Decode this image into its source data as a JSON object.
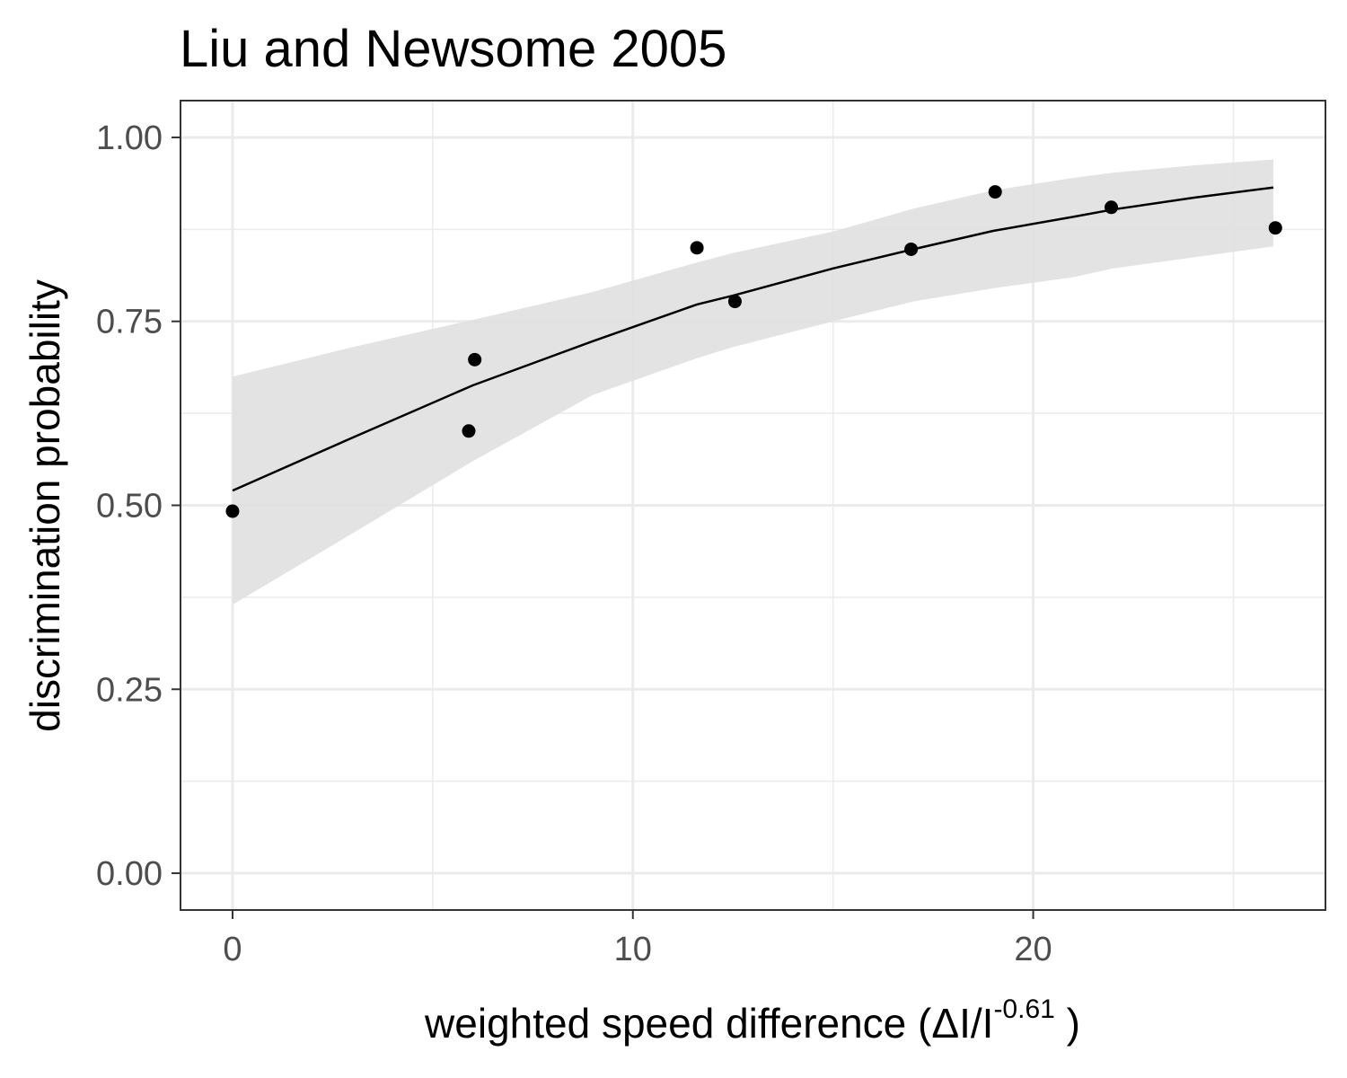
{
  "chart_data": {
    "type": "scatter",
    "title": "Liu and Newsome 2005",
    "xlabel": {
      "prefix": "weighted  speed  difference (ΔI/I",
      "superscript": "-0.61",
      "suffix": " )"
    },
    "ylabel": "discrimination probability",
    "xlim": [
      -1.3,
      27.3
    ],
    "ylim": [
      -0.05,
      1.05
    ],
    "x_ticks": [
      0,
      10,
      20
    ],
    "x_tick_labels": [
      "0",
      "10",
      "20"
    ],
    "x_minor_ticks": [
      5,
      15,
      25
    ],
    "y_ticks": [
      0,
      0.25,
      0.5,
      0.75,
      1.0
    ],
    "y_tick_labels": [
      "0.00",
      "0.25",
      "0.50",
      "0.75",
      "1.00"
    ],
    "y_minor_ticks": [
      0.125,
      0.375,
      0.625,
      0.875
    ],
    "grid": true,
    "legend": "none",
    "points": {
      "x": [
        0.0,
        5.9,
        6.05,
        11.6,
        12.55,
        16.95,
        19.05,
        21.95,
        26.05
      ],
      "y": [
        0.492,
        0.601,
        0.698,
        0.85,
        0.777,
        0.848,
        0.926,
        0.905,
        0.877
      ]
    },
    "fit": {
      "x": [
        0.0,
        3.0,
        6.0,
        9.0,
        11.6,
        12.5,
        15.0,
        17.0,
        19.0,
        21.0,
        22.0,
        24.0,
        26.0
      ],
      "y": [
        0.52,
        0.592,
        0.663,
        0.723,
        0.773,
        0.785,
        0.822,
        0.848,
        0.873,
        0.892,
        0.902,
        0.918,
        0.932
      ],
      "lower": [
        0.365,
        0.462,
        0.56,
        0.65,
        0.7,
        0.715,
        0.75,
        0.777,
        0.795,
        0.81,
        0.822,
        0.837,
        0.852
      ],
      "upper": [
        0.675,
        0.715,
        0.752,
        0.79,
        0.83,
        0.843,
        0.872,
        0.903,
        0.928,
        0.945,
        0.952,
        0.962,
        0.97
      ]
    },
    "colors": {
      "background": "#ffffff",
      "grid": "#ebebeb",
      "panel_border": "#333333",
      "ribbon": "#e0e0e0",
      "line": "#000000",
      "points": "#000000",
      "tick_text": "#4d4d4d",
      "title_text": "#000000"
    }
  }
}
